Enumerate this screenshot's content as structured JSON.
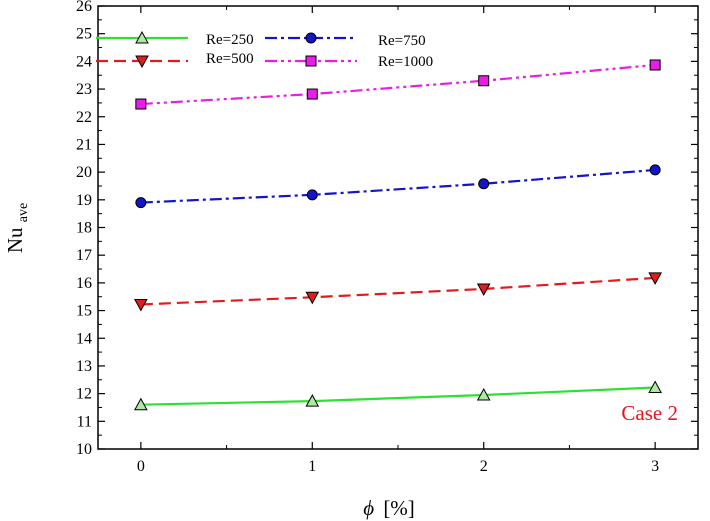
{
  "chart_data": {
    "type": "line",
    "x": [
      0,
      1,
      2,
      3
    ],
    "xlabel_symbol": "ϕ",
    "xlabel_unit": "[%]",
    "ylabel_main": "Nu",
    "ylabel_sub": "ave",
    "xlim": [
      -0.25,
      3.25
    ],
    "ylim": [
      10,
      26
    ],
    "x_ticks": [
      "0",
      "1",
      "2",
      "3"
    ],
    "y_ticks": [
      "10",
      "11",
      "12",
      "13",
      "14",
      "15",
      "16",
      "17",
      "18",
      "19",
      "20",
      "21",
      "22",
      "23",
      "24",
      "25",
      "26"
    ],
    "grid": false,
    "legend_position": "top-left",
    "annotation": {
      "text": "Case 2",
      "color": "#e8141c"
    },
    "series": [
      {
        "name": "Re=250",
        "values": [
          11.6,
          11.73,
          11.95,
          12.22
        ],
        "color": "#2ee12e",
        "dash": "solid",
        "marker": "triangle-up",
        "marker_fill": "#aee9a4"
      },
      {
        "name": "Re=500",
        "values": [
          15.22,
          15.48,
          15.78,
          16.18
        ],
        "color": "#e01c1c",
        "dash": "dashed",
        "marker": "triangle-down",
        "marker_fill": "#e01c1c"
      },
      {
        "name": "Re=750",
        "values": [
          18.9,
          19.18,
          19.58,
          20.08
        ],
        "color": "#1414c8",
        "dash": "dashdot",
        "marker": "circle",
        "marker_fill": "#1414c8"
      },
      {
        "name": "Re=1000",
        "values": [
          22.46,
          22.82,
          23.3,
          23.87
        ],
        "color": "#e61ee6",
        "dash": "dashdotdot",
        "marker": "square",
        "marker_fill": "#e61ee6"
      }
    ]
  }
}
